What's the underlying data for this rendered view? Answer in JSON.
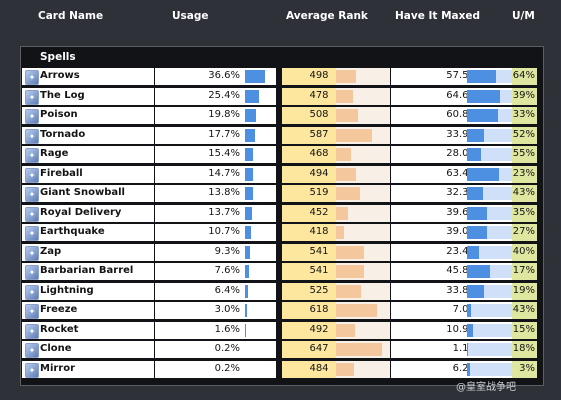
{
  "columns": {
    "card_name": "Card Name",
    "usage": "Usage",
    "average_rank": "Average Rank",
    "have_it_maxed": "Have It Maxed",
    "um": "U/M"
  },
  "section_title": "Spells",
  "rows": [
    {
      "name": "Arrows",
      "usage": "36.6%",
      "rank": "498",
      "maxed": "57.5%",
      "um": "64%"
    },
    {
      "name": "The Log",
      "usage": "25.4%",
      "rank": "478",
      "maxed": "64.6%",
      "um": "39%"
    },
    {
      "name": "Poison",
      "usage": "19.8%",
      "rank": "508",
      "maxed": "60.8%",
      "um": "33%"
    },
    {
      "name": "Tornado",
      "usage": "17.7%",
      "rank": "587",
      "maxed": "33.9%",
      "um": "52%"
    },
    {
      "name": "Rage",
      "usage": "15.4%",
      "rank": "468",
      "maxed": "28.0%",
      "um": "55%"
    },
    {
      "name": "Fireball",
      "usage": "14.7%",
      "rank": "494",
      "maxed": "63.4%",
      "um": "23%"
    },
    {
      "name": "Giant Snowball",
      "usage": "13.8%",
      "rank": "519",
      "maxed": "32.3%",
      "um": "43%"
    },
    {
      "name": "Royal Delivery",
      "usage": "13.7%",
      "rank": "452",
      "maxed": "39.6%",
      "um": "35%"
    },
    {
      "name": "Earthquake",
      "usage": "10.7%",
      "rank": "418",
      "maxed": "39.0%",
      "um": "27%"
    },
    {
      "name": "Zap",
      "usage": "9.3%",
      "rank": "541",
      "maxed": "23.4%",
      "um": "40%"
    },
    {
      "name": "Barbarian Barrel",
      "usage": "7.6%",
      "rank": "541",
      "maxed": "45.8%",
      "um": "17%"
    },
    {
      "name": "Lightning",
      "usage": "6.4%",
      "rank": "525",
      "maxed": "33.8%",
      "um": "19%"
    },
    {
      "name": "Freeze",
      "usage": "3.0%",
      "rank": "618",
      "maxed": "7.0%",
      "um": "43%"
    },
    {
      "name": "Rocket",
      "usage": "1.6%",
      "rank": "492",
      "maxed": "10.9%",
      "um": "15%"
    },
    {
      "name": "Clone",
      "usage": "0.2%",
      "rank": "647",
      "maxed": "1.1%",
      "um": "18%"
    },
    {
      "name": "Mirror",
      "usage": "0.2%",
      "rank": "484",
      "maxed": "6.2%",
      "um": "3%"
    }
  ],
  "colors": {
    "background": "#2e3138",
    "usage_bar": "#4d8fe0",
    "rank_fill": "#fde79f",
    "rank_bar": "#f5c79c",
    "maxed_track": "#cfe0f8",
    "um_fill": "#dfe6a0"
  },
  "icon_name": "spell-card-icon",
  "watermark": "@皇室战争吧"
}
